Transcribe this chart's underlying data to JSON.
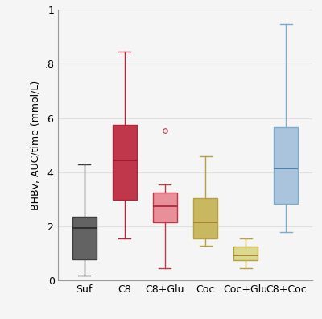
{
  "categories": [
    "Suf",
    "C8",
    "C8+Glu",
    "Coc",
    "Coc+Glu",
    "C8+Coc"
  ],
  "box_data": [
    {
      "whislo": 0.02,
      "q1": 0.08,
      "med": 0.195,
      "q3": 0.235,
      "whishi": 0.43
    },
    {
      "whislo": 0.155,
      "q1": 0.3,
      "med": 0.445,
      "q3": 0.575,
      "whishi": 0.845
    },
    {
      "whislo": 0.045,
      "q1": 0.215,
      "med": 0.275,
      "q3": 0.325,
      "whishi": 0.355,
      "fliers": [
        0.555
      ]
    },
    {
      "whislo": 0.13,
      "q1": 0.155,
      "med": 0.215,
      "q3": 0.305,
      "whishi": 0.46
    },
    {
      "whislo": 0.045,
      "q1": 0.075,
      "med": 0.095,
      "q3": 0.125,
      "whishi": 0.155
    },
    {
      "whislo": 0.18,
      "q1": 0.285,
      "med": 0.415,
      "q3": 0.565,
      "whishi": 0.945
    }
  ],
  "box_colors": [
    "#636363",
    "#c0364a",
    "#e8909a",
    "#c8b860",
    "#ddd890",
    "#aac4de"
  ],
  "box_edge_colors": [
    "#3d3d3d",
    "#b0253a",
    "#c0364a",
    "#b8a040",
    "#b8a040",
    "#7aacce"
  ],
  "median_colors": [
    "#2a2a2a",
    "#a01828",
    "#b0253a",
    "#a08030",
    "#a08030",
    "#4a7aa0"
  ],
  "whisker_colors": [
    "#3d3d3d",
    "#b0253a",
    "#c0364a",
    "#b8a040",
    "#b8a040",
    "#7aacce"
  ],
  "cap_colors": [
    "#3d3d3d",
    "#b0253a",
    "#c0364a",
    "#b8a040",
    "#b8a040",
    "#7aacce"
  ],
  "flier_color": "#c0364a",
  "ylabel": "BHBv, AUC/time (mmol/L)",
  "ylim": [
    0,
    1.0
  ],
  "yticks": [
    0,
    0.2,
    0.4,
    0.6,
    0.8,
    1.0
  ],
  "yticklabels": [
    "0",
    ".2",
    ".4",
    ".6",
    ".8",
    "1"
  ],
  "grid_color": "#e0e0e0",
  "background_color": "#f5f5f5",
  "box_width": 0.6,
  "linewidth": 1.0,
  "tick_fontsize": 9,
  "label_fontsize": 9
}
